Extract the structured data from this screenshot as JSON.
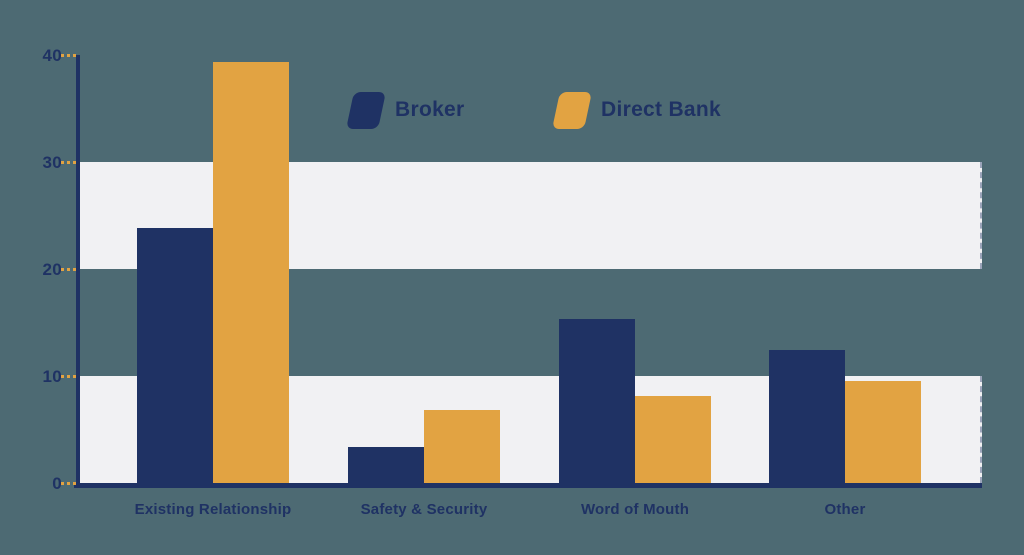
{
  "colors": {
    "background": "#4d6a73",
    "navy": "#1f3264",
    "orange": "#e2a342",
    "stripe": "#f1f1f3",
    "label_text": "#1f3264"
  },
  "legend": {
    "items": [
      {
        "label": "Broker",
        "swatch": "navy-parallelogram"
      },
      {
        "label": "Direct Bank",
        "swatch": "orange-parallelogram"
      }
    ]
  },
  "chart_data": {
    "type": "bar",
    "categories": [
      "Existing Relationship",
      "Safety & Security",
      "Word of Mouth",
      "Other"
    ],
    "series": [
      {
        "name": "Broker",
        "color": "#1f3264",
        "values": [
          23.8,
          3.4,
          15.3,
          12.4
        ]
      },
      {
        "name": "Direct Bank",
        "color": "#e2a342",
        "values": [
          39.3,
          6.8,
          8.1,
          9.5
        ]
      }
    ],
    "title": "",
    "xlabel": "",
    "ylabel": "",
    "ylim": [
      0,
      40
    ],
    "yticks": [
      0,
      10,
      20,
      30,
      40
    ],
    "ytick_labels": [
      "0",
      "10",
      "20",
      "30",
      "40"
    ],
    "grid": "alternating horizontal stripes",
    "stripes": [
      [
        0,
        10
      ],
      [
        20,
        30
      ]
    ],
    "tick_style": "dashed-orange",
    "legend_position": "top-center"
  }
}
